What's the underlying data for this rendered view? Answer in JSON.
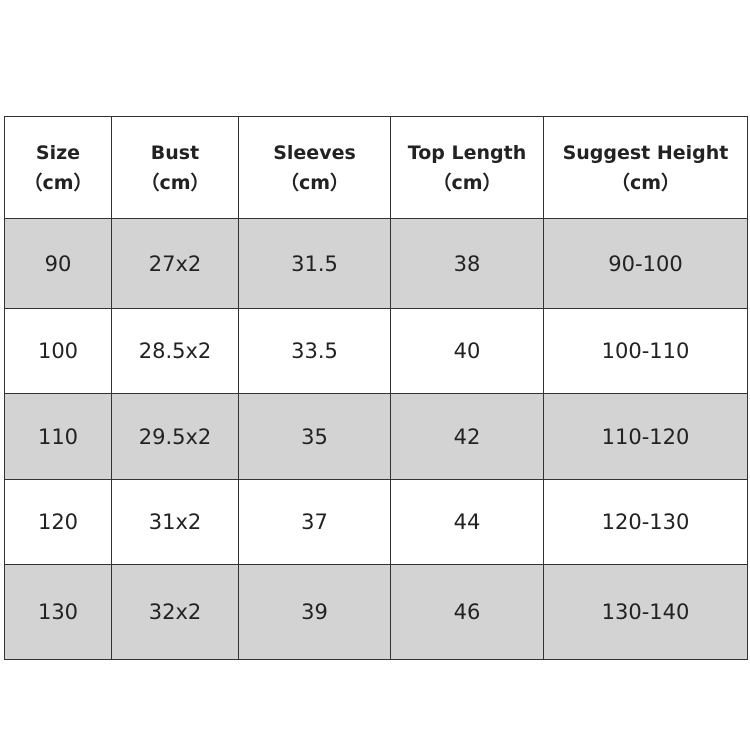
{
  "headers": [
    {
      "label": "Size",
      "unit": "（cm）"
    },
    {
      "label": "Bust",
      "unit": "（cm）"
    },
    {
      "label": "Sleeves",
      "unit": "（cm）"
    },
    {
      "label": "Top Length",
      "unit": "（cm）"
    },
    {
      "label": "Suggest Height",
      "unit": "（cm）"
    }
  ],
  "rows": [
    [
      "90",
      "27x2",
      "31.5",
      "38",
      "90-100"
    ],
    [
      "100",
      "28.5x2",
      "33.5",
      "40",
      "100-110"
    ],
    [
      "110",
      "29.5x2",
      "35",
      "42",
      "110-120"
    ],
    [
      "120",
      "31x2",
      "37",
      "44",
      "120-130"
    ],
    [
      "130",
      "32x2",
      "39",
      "46",
      "130-140"
    ]
  ],
  "colors": {
    "shaded_row": "#d3d3d3",
    "border": "#333333"
  }
}
